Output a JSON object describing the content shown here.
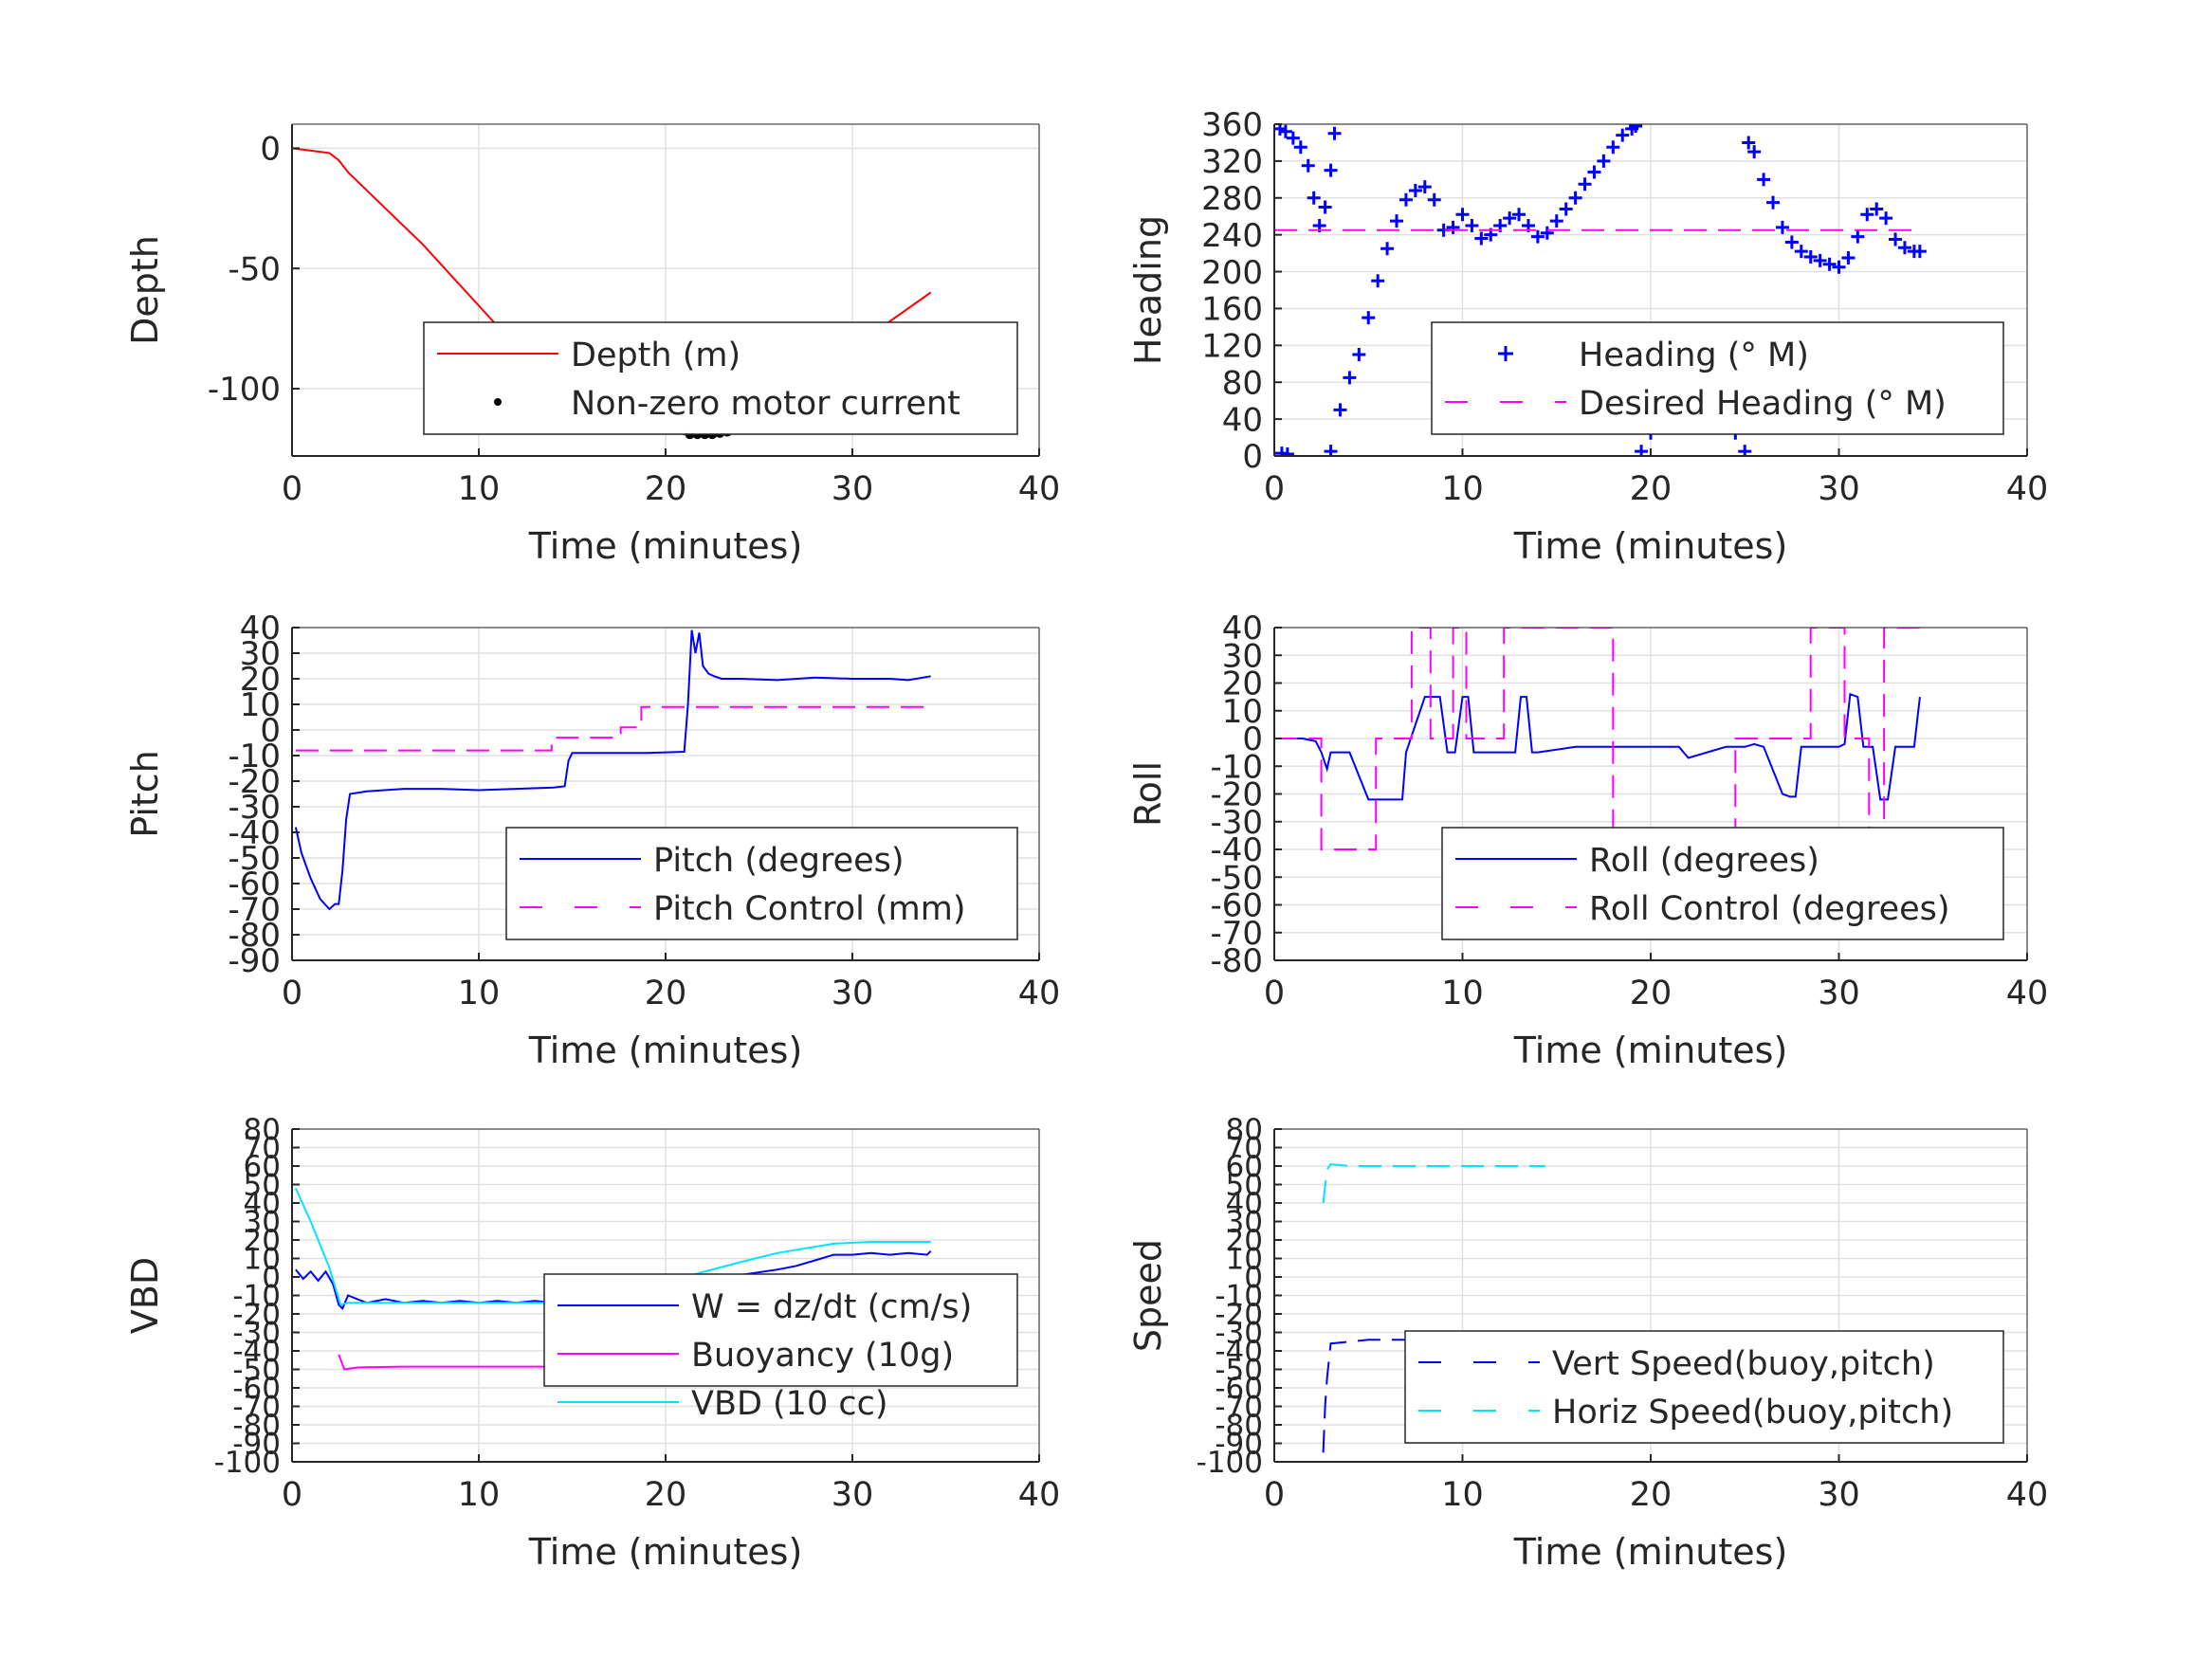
{
  "chart_data": [
    {
      "type": "line",
      "ylabel": "Depth",
      "xlabel": "Time (minutes)",
      "xlim": [
        0,
        40
      ],
      "ylim": [
        -128,
        10
      ],
      "xticks": [
        0,
        10,
        20,
        30,
        40
      ],
      "yticks": [
        0,
        -50,
        -100
      ],
      "ytick_labels": [
        "0",
        "-50",
        "-100"
      ],
      "grid": true,
      "legend_position": "bottom-right",
      "series": [
        {
          "name": "Depth (m)",
          "style": "line",
          "color": "#ff0000",
          "x": [
            0,
            1,
            2,
            2.5,
            3,
            5,
            7,
            9,
            11,
            13,
            15,
            17,
            19,
            21,
            22,
            23,
            24,
            25,
            26,
            28,
            30,
            32,
            34.2
          ],
          "y": [
            0,
            -1,
            -2,
            -5,
            -10,
            -25,
            -40,
            -57,
            -74,
            -90,
            -104,
            -110,
            -115,
            -119,
            -119,
            -118,
            -115,
            -111,
            -106,
            -95,
            -84,
            -72,
            -60
          ]
        },
        {
          "name": "Non-zero motor current",
          "style": "dots",
          "color": "#000000",
          "x": [
            21.3,
            21.7,
            22.1,
            22.5,
            22.9,
            23.3,
            23.7,
            24.1,
            24.5,
            24.9,
            25.3,
            25.7
          ],
          "y": [
            -119,
            -119,
            -119,
            -119,
            -118.5,
            -118,
            -117,
            -116,
            -115,
            -113.5,
            -112,
            -110
          ]
        }
      ]
    },
    {
      "type": "scatter",
      "ylabel": "Heading",
      "xlabel": "Time (minutes)",
      "xlim": [
        0,
        40
      ],
      "ylim": [
        0,
        360
      ],
      "xticks": [
        0,
        10,
        20,
        30,
        40
      ],
      "yticks": [
        0,
        40,
        80,
        120,
        160,
        200,
        240,
        280,
        320,
        360
      ],
      "ytick_labels": [
        "0",
        "40",
        "80",
        "120",
        "160",
        "200",
        "240",
        "280",
        "320",
        "360"
      ],
      "grid": true,
      "legend_position": "bottom-right",
      "series": [
        {
          "name": "Heading (° M)",
          "style": "plus",
          "color": "#0000ff",
          "x": [
            0.3,
            0.6,
            1.0,
            1.4,
            1.8,
            2.1,
            2.4,
            2.7,
            3.0,
            3.2,
            0.4,
            0.7,
            3.0,
            3.5,
            4.0,
            4.5,
            5.0,
            5.5,
            6.0,
            6.5,
            7.0,
            7.5,
            8.0,
            8.5,
            9.0,
            9.5,
            10.0,
            10.5,
            11.0,
            11.5,
            12.0,
            12.5,
            13.0,
            13.5,
            14.0,
            14.5,
            15.0,
            15.5,
            16.0,
            16.5,
            17.0,
            17.5,
            18.0,
            18.5,
            19.0,
            19.2,
            19.5,
            20.0,
            20.5,
            21.0,
            21.5,
            22.0,
            22.5,
            23.0,
            23.5,
            24.0,
            24.5,
            25.0,
            25.2,
            25.5,
            26.0,
            26.5,
            27.0,
            27.5,
            28.0,
            28.5,
            29.0,
            29.5,
            30.0,
            30.5,
            31.0,
            31.5,
            32.0,
            32.5,
            33.0,
            33.5,
            34.0,
            34.3
          ],
          "y": [
            355,
            352,
            345,
            335,
            315,
            280,
            250,
            270,
            310,
            350,
            3,
            2,
            5,
            50,
            85,
            110,
            150,
            190,
            225,
            255,
            278,
            288,
            292,
            278,
            245,
            248,
            262,
            250,
            236,
            240,
            250,
            258,
            262,
            250,
            238,
            242,
            255,
            268,
            280,
            295,
            308,
            320,
            335,
            348,
            355,
            358,
            5,
            25,
            45,
            60,
            72,
            82,
            85,
            82,
            70,
            50,
            25,
            5,
            340,
            330,
            300,
            275,
            248,
            232,
            222,
            216,
            212,
            208,
            205,
            215,
            238,
            262,
            268,
            258,
            235,
            226,
            222,
            222
          ]
        },
        {
          "name": "Desired Heading (° M)",
          "style": "dashed",
          "color": "#ff00ff",
          "x": [
            0,
            34.3
          ],
          "y": [
            245,
            245
          ]
        }
      ]
    },
    {
      "type": "line",
      "ylabel": "Pitch",
      "xlabel": "Time (minutes)",
      "xlim": [
        0,
        40
      ],
      "ylim": [
        -90,
        40
      ],
      "xticks": [
        0,
        10,
        20,
        30,
        40
      ],
      "yticks": [
        40,
        30,
        20,
        10,
        0,
        -10,
        -20,
        -30,
        -40,
        -50,
        -60,
        -70,
        -80,
        -90
      ],
      "ytick_labels": [
        "40",
        "30",
        "20",
        "10",
        "0",
        "-10",
        "-20",
        "-30",
        "-40",
        "-50",
        "-60",
        "-70",
        "-80",
        "-90"
      ],
      "grid": true,
      "legend_position": "bottom-right",
      "series": [
        {
          "name": "Pitch (degrees)",
          "style": "line",
          "color": "#0000ff",
          "x": [
            0.2,
            0.5,
            1.0,
            1.5,
            2.0,
            2.3,
            2.5,
            2.7,
            2.9,
            3.1,
            4.0,
            6.0,
            8.0,
            10.0,
            12.0,
            14.0,
            14.6,
            14.8,
            15.0,
            17.0,
            19.0,
            21.0,
            21.2,
            21.4,
            21.6,
            21.8,
            22.0,
            22.3,
            22.6,
            23.0,
            24.0,
            26.0,
            28.0,
            30.0,
            32.0,
            33.0,
            34.2
          ],
          "y": [
            -38,
            -48,
            -58,
            -66,
            -70,
            -68,
            -68,
            -55,
            -35,
            -25,
            -24,
            -23,
            -23,
            -23.5,
            -23,
            -22.5,
            -22,
            -12,
            -9,
            -9,
            -9,
            -8.5,
            10,
            39,
            30,
            38,
            25,
            22,
            21,
            20,
            20,
            19.5,
            20.5,
            20,
            20,
            19.5,
            21
          ]
        },
        {
          "name": "Pitch Control (mm)",
          "style": "dashed",
          "color": "#ff00ff",
          "x": [
            0.2,
            13.9,
            13.9,
            17.6,
            17.6,
            18.7,
            18.7,
            34.2
          ],
          "y": [
            -8,
            -8,
            -3,
            -3,
            1,
            1,
            9,
            9
          ]
        }
      ]
    },
    {
      "type": "line",
      "ylabel": "Roll",
      "xlabel": "Time (minutes)",
      "xlim": [
        0,
        40
      ],
      "ylim": [
        -80,
        40
      ],
      "xticks": [
        0,
        10,
        20,
        30,
        40
      ],
      "yticks": [
        40,
        30,
        20,
        10,
        0,
        -10,
        -20,
        -30,
        -40,
        -50,
        -60,
        -70,
        -80
      ],
      "ytick_labels": [
        "40",
        "30",
        "20",
        "10",
        "0",
        "-10",
        "-20",
        "-30",
        "-40",
        "-50",
        "-60",
        "-70",
        "-80"
      ],
      "grid": true,
      "legend_position": "bottom-right",
      "series": [
        {
          "name": "Roll (degrees)",
          "style": "line",
          "color": "#0000ff",
          "x": [
            0,
            1.5,
            2.2,
            2.5,
            2.8,
            3.0,
            3.5,
            4.0,
            5.0,
            6.0,
            6.8,
            7.0,
            8.0,
            8.3,
            8.8,
            9.2,
            9.6,
            10.0,
            10.3,
            10.6,
            11.0,
            12.0,
            12.8,
            13.1,
            13.4,
            13.7,
            14.0,
            16.0,
            18.0,
            20.0,
            21.5,
            22.0,
            24.0,
            25.0,
            25.5,
            26.0,
            27.0,
            27.4,
            27.7,
            28.0,
            29.0,
            30.0,
            30.3,
            30.6,
            31.0,
            31.3,
            31.8,
            32.2,
            32.6,
            33.0,
            33.5,
            34.0,
            34.3
          ],
          "y": [
            0,
            0,
            -1,
            -5,
            -11,
            -5,
            -5,
            -5,
            -22,
            -22,
            -22,
            -5,
            15,
            15,
            15,
            -5,
            -5,
            15,
            15,
            -5,
            -5,
            -5,
            -5,
            15,
            15,
            -5,
            -5,
            -3,
            -3,
            -3,
            -3,
            -7,
            -3,
            -3,
            -2,
            -3,
            -20,
            -21,
            -21,
            -3,
            -3,
            -3,
            -2,
            16,
            15,
            -3,
            -3,
            -22,
            -22,
            -3,
            -3,
            -3,
            15
          ]
        },
        {
          "name": "Roll Control (degrees)",
          "style": "dashed",
          "color": "#ff00ff",
          "x": [
            0,
            2.5,
            2.5,
            3.3,
            3.3,
            5.4,
            5.4,
            7.3,
            7.3,
            8.3,
            8.3,
            9.5,
            9.5,
            10.2,
            10.2,
            12.2,
            12.2,
            18.0,
            18.0,
            24.5,
            24.5,
            28.5,
            28.5,
            30.3,
            30.3,
            31.6,
            31.6,
            32.4,
            32.4,
            34.3
          ],
          "y": [
            0,
            0,
            -40,
            -40,
            -40,
            -40,
            0,
            0,
            40,
            40,
            0,
            0,
            40,
            40,
            0,
            0,
            40,
            40,
            -40,
            -40,
            0,
            0,
            40,
            40,
            0,
            0,
            -40,
            -40,
            40,
            40
          ]
        }
      ]
    },
    {
      "type": "line",
      "ylabel": "VBD",
      "xlabel": "Time (minutes)",
      "xlim": [
        0,
        40
      ],
      "ylim": [
        -100,
        80
      ],
      "xticks": [
        0,
        10,
        20,
        30,
        40
      ],
      "yticks": [
        80,
        70,
        60,
        50,
        40,
        30,
        20,
        10,
        0,
        -10,
        -20,
        -30,
        -40,
        -50,
        -60,
        -70,
        -80,
        -90,
        -100
      ],
      "ytick_labels": [
        "80",
        "70",
        "60",
        "50",
        "40",
        "30",
        "20",
        "10",
        "0",
        "-10",
        "-20",
        "-30",
        "-40",
        "-50",
        "-60",
        "-70",
        "-80",
        "-90",
        "-100"
      ],
      "grid": true,
      "legend_position": "bottom-right",
      "series": [
        {
          "name": "W = dz/dt (cm/s)",
          "style": "line",
          "color": "#0000ff",
          "x": [
            0.2,
            0.6,
            1.0,
            1.4,
            1.8,
            2.2,
            2.5,
            2.7,
            3.0,
            4.0,
            5.0,
            6.0,
            7.0,
            8.0,
            9.0,
            10.0,
            11.0,
            12.0,
            13.0,
            14.0,
            14.5,
            14.8,
            15.0,
            17.0,
            19.0,
            21.0,
            22.0,
            24.0,
            26.0,
            27.0,
            28.0,
            29.0,
            30.0,
            31.0,
            32.0,
            33.0,
            34.0,
            34.2
          ],
          "y": [
            4,
            -1,
            3,
            -2,
            3,
            -4,
            -15,
            -17,
            -10,
            -14,
            -12,
            -14,
            -13,
            -14,
            -13,
            -14,
            -13,
            -14,
            -13,
            -14,
            -13,
            -15,
            -8,
            -7,
            -6,
            -4,
            -2,
            1,
            4,
            6,
            9,
            12,
            12,
            13,
            12,
            13,
            12,
            14
          ]
        },
        {
          "name": "Buoyancy (10g)",
          "style": "line",
          "color": "#ff00ff",
          "x": [
            2.5,
            2.8,
            3.5,
            6.0,
            10.0,
            14.0,
            14.6
          ],
          "y": [
            -42,
            -50,
            -49,
            -48.5,
            -48.5,
            -48.5,
            -48.5
          ]
        },
        {
          "name": "VBD (10 cc)",
          "style": "line",
          "color": "#00e5ff",
          "x": [
            0.2,
            1.0,
            2.0,
            2.6,
            3.0,
            14.5,
            15.5,
            18.0,
            21.0,
            24.0,
            26.0,
            29.0,
            31.0,
            34.2
          ],
          "y": [
            48,
            30,
            5,
            -15,
            -14,
            -14,
            -8,
            -5,
            0,
            8,
            13,
            18,
            19,
            19
          ]
        }
      ]
    },
    {
      "type": "line",
      "ylabel": "Speed",
      "xlabel": "Time (minutes)",
      "xlim": [
        0,
        40
      ],
      "ylim": [
        -100,
        80
      ],
      "xticks": [
        0,
        10,
        20,
        30,
        40
      ],
      "yticks": [
        80,
        70,
        60,
        50,
        40,
        30,
        20,
        10,
        0,
        -10,
        -20,
        -30,
        -40,
        -50,
        -60,
        -70,
        -80,
        -90,
        -100
      ],
      "ytick_labels": [
        "80",
        "70",
        "60",
        "50",
        "40",
        "30",
        "20",
        "10",
        "0",
        "-10",
        "-20",
        "-30",
        "-40",
        "-50",
        "-60",
        "-70",
        "-80",
        "-90",
        "-100"
      ],
      "grid": true,
      "legend_position": "bottom-right",
      "series": [
        {
          "name": "Vert Speed(buoy,pitch)",
          "style": "dashed",
          "color": "#0000ff",
          "x": [
            2.6,
            2.7,
            2.8,
            3.0,
            4.0,
            5.0,
            6.0,
            8.0,
            10.0,
            12.0,
            14.4
          ],
          "y": [
            -95,
            -70,
            -55,
            -36,
            -35,
            -34,
            -34,
            -34,
            -34,
            -34,
            -34
          ]
        },
        {
          "name": "Horiz Speed(buoy,pitch)",
          "style": "dashed",
          "color": "#00e5ff",
          "x": [
            2.6,
            2.8,
            3.0,
            4.0,
            6.0,
            8.0,
            10.0,
            12.0,
            14.4
          ],
          "y": [
            40,
            58,
            61,
            60,
            60,
            60,
            60,
            60,
            60
          ]
        }
      ]
    }
  ]
}
